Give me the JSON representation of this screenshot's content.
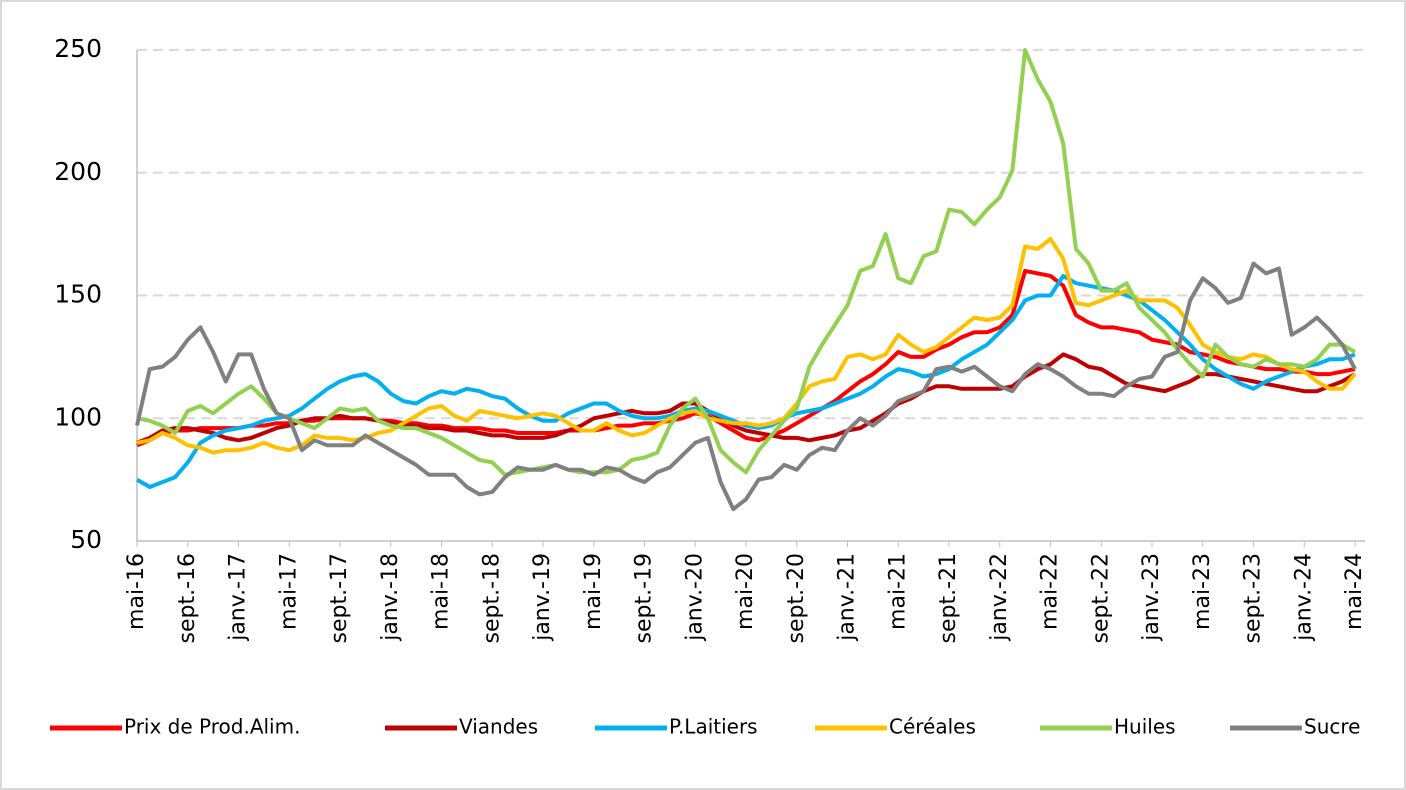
{
  "chart_data": {
    "type": "line",
    "categories": [
      "mai-16",
      null,
      null,
      null,
      "sept.-16",
      null,
      null,
      null,
      "janv.-17",
      null,
      null,
      null,
      "mai-17",
      null,
      null,
      null,
      "sept.-17",
      null,
      null,
      null,
      "janv.-18",
      null,
      null,
      null,
      "mai-18",
      null,
      null,
      null,
      "sept.-18",
      null,
      null,
      null,
      "janv.-19",
      null,
      null,
      null,
      "mai-19",
      null,
      null,
      null,
      "sept.-19",
      null,
      null,
      null,
      "janv.-20",
      null,
      null,
      null,
      "mai-20",
      null,
      null,
      null,
      "sept.-20",
      null,
      null,
      null,
      "janv.-21",
      null,
      null,
      null,
      "mai-21",
      null,
      null,
      null,
      "sept.-21",
      null,
      null,
      null,
      "janv.-22",
      null,
      null,
      null,
      "mai-22",
      null,
      null,
      null,
      "sept.-22",
      null,
      null,
      null,
      "janv.-23",
      null,
      null,
      null,
      "mai-23",
      null,
      null,
      null,
      "sept.-23",
      null,
      null,
      null,
      "janv.-24",
      null,
      null,
      null,
      "mai-24"
    ],
    "ylim": [
      50,
      250
    ],
    "yticks": [
      50,
      100,
      150,
      200,
      250
    ],
    "grid": true,
    "legend": "bottom",
    "series": [
      {
        "name": "Prix de Prod.Alim.",
        "color": "#ff0000",
        "values": [
          89,
          91,
          94,
          95,
          95,
          96,
          96,
          96,
          96,
          97,
          97,
          98,
          98,
          99,
          99,
          100,
          100,
          100,
          100,
          99,
          99,
          98,
          98,
          97,
          97,
          96,
          96,
          96,
          95,
          95,
          94,
          94,
          94,
          94,
          95,
          95,
          95,
          96,
          97,
          97,
          98,
          98,
          99,
          100,
          102,
          101,
          98,
          95,
          92,
          91,
          93,
          95,
          98,
          101,
          104,
          107,
          111,
          115,
          118,
          122,
          127,
          125,
          125,
          128,
          130,
          133,
          135,
          135,
          137,
          142,
          160,
          159,
          158,
          154,
          142,
          139,
          137,
          137,
          136,
          135,
          132,
          131,
          130,
          127,
          126,
          125,
          123,
          122,
          121,
          120,
          120,
          119,
          119,
          118,
          118,
          119,
          120
        ]
      },
      {
        "name": "Viandes",
        "color": "#c00000",
        "values": [
          90,
          92,
          95,
          96,
          96,
          95,
          94,
          92,
          91,
          92,
          94,
          96,
          97,
          99,
          100,
          100,
          101,
          100,
          100,
          99,
          98,
          97,
          97,
          96,
          96,
          95,
          95,
          94,
          93,
          93,
          92,
          92,
          92,
          93,
          95,
          97,
          100,
          101,
          102,
          103,
          102,
          102,
          103,
          106,
          106,
          103,
          100,
          97,
          95,
          94,
          93,
          92,
          92,
          91,
          92,
          93,
          95,
          96,
          99,
          102,
          106,
          108,
          111,
          113,
          113,
          112,
          112,
          112,
          112,
          113,
          117,
          120,
          122,
          126,
          124,
          121,
          120,
          117,
          114,
          113,
          112,
          111,
          113,
          115,
          118,
          118,
          117,
          116,
          115,
          114,
          113,
          112,
          111,
          111,
          113,
          115,
          118
        ]
      },
      {
        "name": "P.Laitiers",
        "color": "#00b0f0",
        "values": [
          75,
          72,
          74,
          76,
          82,
          90,
          93,
          95,
          96,
          97,
          99,
          100,
          101,
          104,
          108,
          112,
          115,
          117,
          118,
          115,
          110,
          107,
          106,
          109,
          111,
          110,
          112,
          111,
          109,
          108,
          104,
          101,
          99,
          99,
          102,
          104,
          106,
          106,
          103,
          101,
          100,
          100,
          101,
          103,
          104,
          103,
          101,
          99,
          97,
          96,
          97,
          100,
          102,
          103,
          104,
          106,
          108,
          110,
          113,
          117,
          120,
          119,
          117,
          118,
          120,
          124,
          127,
          130,
          135,
          140,
          148,
          150,
          150,
          158,
          155,
          154,
          153,
          152,
          150,
          148,
          144,
          140,
          135,
          130,
          124,
          120,
          117,
          114,
          112,
          115,
          117,
          119,
          121,
          122,
          124,
          124,
          126
        ]
      },
      {
        "name": "Céréales",
        "color": "#ffc000",
        "values": [
          90,
          91,
          94,
          92,
          89,
          88,
          86,
          87,
          87,
          88,
          90,
          88,
          87,
          89,
          93,
          92,
          92,
          91,
          92,
          94,
          95,
          98,
          101,
          104,
          105,
          101,
          99,
          103,
          102,
          101,
          100,
          101,
          102,
          101,
          98,
          95,
          95,
          98,
          95,
          93,
          94,
          97,
          100,
          102,
          103,
          100,
          99,
          98,
          98,
          97,
          98,
          100,
          106,
          113,
          115,
          116,
          125,
          126,
          124,
          126,
          134,
          130,
          127,
          129,
          133,
          137,
          141,
          140,
          141,
          146,
          170,
          169,
          173,
          165,
          147,
          146,
          148,
          150,
          152,
          148,
          148,
          148,
          145,
          138,
          130,
          127,
          125,
          124,
          126,
          125,
          122,
          120,
          119,
          115,
          112,
          112,
          118
        ]
      },
      {
        "name": "Huiles",
        "color": "#92d050",
        "values": [
          100,
          99,
          97,
          94,
          103,
          105,
          102,
          106,
          110,
          113,
          108,
          102,
          100,
          98,
          96,
          100,
          104,
          103,
          104,
          99,
          97,
          96,
          96,
          94,
          92,
          89,
          86,
          83,
          82,
          77,
          78,
          79,
          80,
          81,
          79,
          78,
          78,
          78,
          79,
          83,
          84,
          86,
          97,
          104,
          108,
          100,
          87,
          82,
          78,
          87,
          93,
          99,
          104,
          121,
          130,
          138,
          146,
          160,
          162,
          175,
          157,
          155,
          166,
          168,
          185,
          184,
          179,
          185,
          190,
          201,
          250,
          238,
          229,
          212,
          169,
          163,
          152,
          152,
          155,
          145,
          140,
          135,
          128,
          122,
          117,
          130,
          125,
          122,
          121,
          124,
          122,
          122,
          121,
          124,
          130,
          130,
          127
        ]
      },
      {
        "name": "Sucre",
        "color": "#808080",
        "values": [
          97,
          120,
          121,
          125,
          132,
          137,
          127,
          115,
          126,
          126,
          112,
          102,
          100,
          87,
          91,
          89,
          89,
          89,
          93,
          90,
          87,
          84,
          81,
          77,
          77,
          77,
          72,
          69,
          70,
          76,
          80,
          79,
          79,
          81,
          79,
          79,
          77,
          80,
          79,
          76,
          74,
          78,
          80,
          85,
          90,
          92,
          74,
          63,
          67,
          75,
          76,
          81,
          79,
          85,
          88,
          87,
          95,
          100,
          97,
          101,
          107,
          109,
          111,
          120,
          121,
          119,
          121,
          117,
          113,
          111,
          118,
          122,
          120,
          117,
          113,
          110,
          110,
          109,
          113,
          116,
          117,
          125,
          127,
          148,
          157,
          153,
          147,
          149,
          163,
          159,
          161,
          134,
          137,
          141,
          136,
          130,
          120
        ]
      }
    ]
  }
}
